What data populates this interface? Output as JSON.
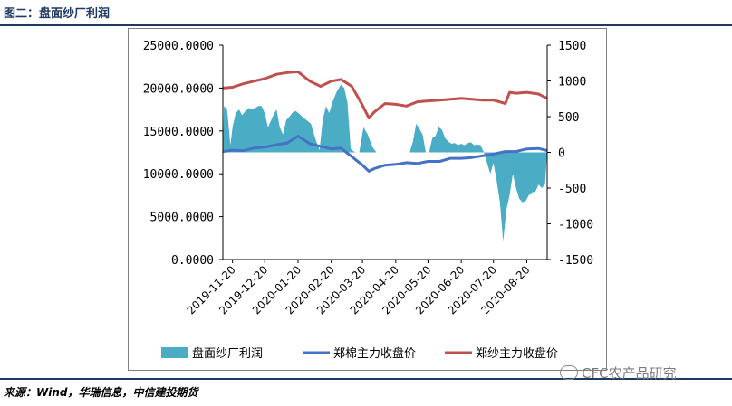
{
  "figure_title": "图二：盘面纱厂利润",
  "source_text": "来源：Wind，华瑞信息，中信建投期货",
  "watermark": "CFC农产品研究",
  "chart_data": {
    "type": "area+line",
    "title": "",
    "left_axis": {
      "ticks": [
        "25000.0000",
        "20000.0000",
        "15000.0000",
        "10000.0000",
        "5000.0000",
        "0.0000"
      ],
      "ylim": [
        0,
        25000
      ]
    },
    "right_axis": {
      "ticks": [
        "1500",
        "1000",
        "500",
        "0",
        "-500",
        "-1000",
        "-1500"
      ],
      "ylim": [
        -1500,
        1500
      ]
    },
    "x_ticks": [
      "2019-11-20",
      "2019-12-20",
      "2020-01-20",
      "2020-02-20",
      "2020-03-20",
      "2020-04-20",
      "2020-05-20",
      "2020-06-20",
      "2020-07-20",
      "2020-08-20"
    ],
    "x_range": [
      "2019-11-11",
      "2020-09-08"
    ],
    "series": [
      {
        "name": "盘面纱厂利润",
        "kind": "area",
        "axis": "right",
        "color": "#4bacc6",
        "points": [
          [
            "2019-11-11",
            0
          ],
          [
            "2019-11-12",
            650
          ],
          [
            "2019-11-15",
            600
          ],
          [
            "2019-11-18",
            100
          ],
          [
            "2019-11-20",
            350
          ],
          [
            "2019-11-23",
            550
          ],
          [
            "2019-11-26",
            600
          ],
          [
            "2019-11-29",
            520
          ],
          [
            "2019-12-02",
            580
          ],
          [
            "2019-12-05",
            620
          ],
          [
            "2019-12-08",
            600
          ],
          [
            "2019-12-11",
            620
          ],
          [
            "2019-12-14",
            650
          ],
          [
            "2019-12-17",
            650
          ],
          [
            "2019-12-20",
            550
          ],
          [
            "2019-12-23",
            350
          ],
          [
            "2019-12-26",
            450
          ],
          [
            "2019-12-29",
            550
          ],
          [
            "2019-12-31",
            600
          ],
          [
            "2020-01-03",
            350
          ],
          [
            "2020-01-06",
            250
          ],
          [
            "2020-01-09",
            450
          ],
          [
            "2020-01-12",
            500
          ],
          [
            "2020-01-15",
            560
          ],
          [
            "2020-01-18",
            580
          ],
          [
            "2020-01-21",
            540
          ],
          [
            "2020-01-24",
            500
          ],
          [
            "2020-02-01",
            400
          ],
          [
            "2020-02-05",
            200
          ],
          [
            "2020-02-09",
            30
          ],
          [
            "2020-02-12",
            450
          ],
          [
            "2020-02-15",
            650
          ],
          [
            "2020-02-18",
            550
          ],
          [
            "2020-02-21",
            700
          ],
          [
            "2020-02-25",
            850
          ],
          [
            "2020-02-29",
            950
          ],
          [
            "2020-03-03",
            900
          ],
          [
            "2020-03-06",
            700
          ],
          [
            "2020-03-09",
            50
          ],
          [
            "2020-03-11",
            20
          ],
          [
            "2020-03-14",
            0
          ],
          [
            "2020-03-17",
            0
          ],
          [
            "2020-03-21",
            350
          ],
          [
            "2020-03-25",
            250
          ],
          [
            "2020-03-29",
            80
          ],
          [
            "2020-04-02",
            0
          ],
          [
            "2020-04-10",
            0
          ],
          [
            "2020-04-20",
            0
          ],
          [
            "2020-04-28",
            0
          ],
          [
            "2020-05-03",
            0
          ],
          [
            "2020-05-06",
            150
          ],
          [
            "2020-05-09",
            400
          ],
          [
            "2020-05-12",
            330
          ],
          [
            "2020-05-15",
            250
          ],
          [
            "2020-05-18",
            0
          ],
          [
            "2020-05-21",
            0
          ],
          [
            "2020-05-24",
            200
          ],
          [
            "2020-05-27",
            230
          ],
          [
            "2020-05-30",
            350
          ],
          [
            "2020-06-02",
            320
          ],
          [
            "2020-06-05",
            200
          ],
          [
            "2020-06-08",
            150
          ],
          [
            "2020-06-11",
            120
          ],
          [
            "2020-06-14",
            130
          ],
          [
            "2020-06-17",
            100
          ],
          [
            "2020-06-20",
            120
          ],
          [
            "2020-06-23",
            100
          ],
          [
            "2020-06-26",
            130
          ],
          [
            "2020-06-29",
            140
          ],
          [
            "2020-07-02",
            100
          ],
          [
            "2020-07-05",
            110
          ],
          [
            "2020-07-08",
            100
          ],
          [
            "2020-07-11",
            0
          ],
          [
            "2020-07-14",
            -150
          ],
          [
            "2020-07-17",
            -300
          ],
          [
            "2020-07-20",
            -150
          ],
          [
            "2020-07-23",
            -400
          ],
          [
            "2020-07-26",
            -700
          ],
          [
            "2020-07-29",
            -1250
          ],
          [
            "2020-08-01",
            -800
          ],
          [
            "2020-08-04",
            -600
          ],
          [
            "2020-08-07",
            -300
          ],
          [
            "2020-08-10",
            -500
          ],
          [
            "2020-08-13",
            -650
          ],
          [
            "2020-08-16",
            -700
          ],
          [
            "2020-08-19",
            -680
          ],
          [
            "2020-08-22",
            -600
          ],
          [
            "2020-08-25",
            -560
          ],
          [
            "2020-08-28",
            -550
          ],
          [
            "2020-08-31",
            -450
          ],
          [
            "2020-09-03",
            -500
          ],
          [
            "2020-09-06",
            -450
          ],
          [
            "2020-09-08",
            0
          ]
        ]
      },
      {
        "name": "郑棉主力收盘价",
        "kind": "line",
        "axis": "left",
        "color": "#4472c4",
        "points": [
          [
            "2019-11-11",
            12600
          ],
          [
            "2019-11-20",
            12750
          ],
          [
            "2019-11-30",
            12700
          ],
          [
            "2019-12-10",
            13000
          ],
          [
            "2019-12-20",
            13100
          ],
          [
            "2019-12-31",
            13400
          ],
          [
            "2020-01-10",
            13600
          ],
          [
            "2020-01-20",
            14400
          ],
          [
            "2020-01-31",
            13500
          ],
          [
            "2020-02-10",
            13200
          ],
          [
            "2020-02-20",
            12900
          ],
          [
            "2020-02-29",
            13000
          ],
          [
            "2020-03-10",
            12000
          ],
          [
            "2020-03-20",
            11000
          ],
          [
            "2020-03-26",
            10300
          ],
          [
            "2020-03-31",
            10600
          ],
          [
            "2020-04-10",
            11000
          ],
          [
            "2020-04-20",
            11100
          ],
          [
            "2020-04-30",
            11300
          ],
          [
            "2020-05-10",
            11200
          ],
          [
            "2020-05-20",
            11450
          ],
          [
            "2020-05-31",
            11450
          ],
          [
            "2020-06-10",
            11800
          ],
          [
            "2020-06-20",
            11800
          ],
          [
            "2020-06-30",
            11900
          ],
          [
            "2020-07-10",
            12100
          ],
          [
            "2020-07-20",
            12300
          ],
          [
            "2020-07-31",
            12600
          ],
          [
            "2020-08-10",
            12600
          ],
          [
            "2020-08-20",
            12900
          ],
          [
            "2020-08-31",
            12950
          ],
          [
            "2020-09-08",
            12700
          ]
        ]
      },
      {
        "name": "郑纱主力收盘价",
        "kind": "line",
        "axis": "left",
        "color": "#c0504d",
        "points": [
          [
            "2019-11-11",
            20000
          ],
          [
            "2019-11-20",
            20100
          ],
          [
            "2019-11-30",
            20500
          ],
          [
            "2019-12-10",
            20800
          ],
          [
            "2019-12-20",
            21100
          ],
          [
            "2019-12-31",
            21600
          ],
          [
            "2020-01-10",
            21800
          ],
          [
            "2020-01-20",
            21900
          ],
          [
            "2020-01-31",
            20800
          ],
          [
            "2020-02-10",
            20200
          ],
          [
            "2020-02-20",
            20800
          ],
          [
            "2020-02-29",
            21000
          ],
          [
            "2020-03-10",
            20200
          ],
          [
            "2020-03-20",
            18000
          ],
          [
            "2020-03-26",
            16500
          ],
          [
            "2020-03-31",
            17200
          ],
          [
            "2020-04-10",
            18200
          ],
          [
            "2020-04-20",
            18100
          ],
          [
            "2020-04-30",
            17900
          ],
          [
            "2020-05-10",
            18400
          ],
          [
            "2020-05-20",
            18500
          ],
          [
            "2020-05-31",
            18600
          ],
          [
            "2020-06-10",
            18700
          ],
          [
            "2020-06-20",
            18800
          ],
          [
            "2020-06-30",
            18700
          ],
          [
            "2020-07-10",
            18600
          ],
          [
            "2020-07-20",
            18600
          ],
          [
            "2020-07-31",
            18200
          ],
          [
            "2020-08-04",
            19500
          ],
          [
            "2020-08-10",
            19400
          ],
          [
            "2020-08-20",
            19500
          ],
          [
            "2020-08-31",
            19300
          ],
          [
            "2020-09-08",
            18800
          ]
        ]
      }
    ],
    "legend": [
      "盘面纱厂利润",
      "郑棉主力收盘价",
      "郑纱主力收盘价"
    ],
    "legend_position": "bottom",
    "grid": false
  }
}
